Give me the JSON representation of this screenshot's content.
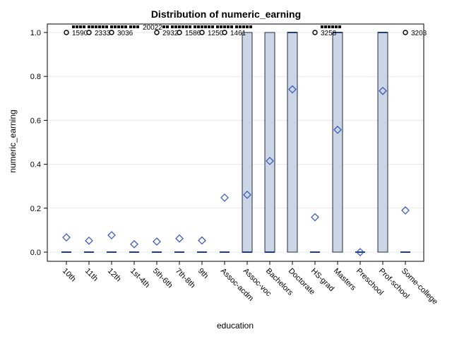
{
  "chart_data": {
    "type": "box",
    "title": "Distribution of numeric_earning",
    "xlabel": "education",
    "ylabel": "numeric_earning",
    "ylim": [
      0,
      1
    ],
    "yticks": [
      "0.0",
      "0.2",
      "0.4",
      "0.6",
      "0.8",
      "1.0"
    ],
    "ytick_values": [
      0,
      0.2,
      0.4,
      0.6,
      0.8,
      1.0
    ],
    "grid": true,
    "colors": {
      "box_fill": "#cbd5e3",
      "box_stroke": "#1f2a44",
      "mean_marker": "#2f55b5",
      "median": "#1f3c7a"
    },
    "categories": [
      "10th",
      "11th",
      "12th",
      "1st-4th",
      "5th-6th",
      "7th-8th",
      "9th",
      "Assoc-acdm",
      "Assoc-voc",
      "Bachelors",
      "Doctorate",
      "HS-grad",
      "Masters",
      "Preschool",
      "Prof-school",
      "Some-college"
    ],
    "boxes": [
      {
        "category": "10th",
        "q1": 0,
        "median": 0,
        "q3": 0,
        "mean": 0.067
      },
      {
        "category": "11th",
        "q1": 0,
        "median": 0,
        "q3": 0,
        "mean": 0.052
      },
      {
        "category": "12th",
        "q1": 0,
        "median": 0,
        "q3": 0,
        "mean": 0.077
      },
      {
        "category": "1st-4th",
        "q1": 0,
        "median": 0,
        "q3": 0,
        "mean": 0.036
      },
      {
        "category": "5th-6th",
        "q1": 0,
        "median": 0,
        "q3": 0,
        "mean": 0.048
      },
      {
        "category": "7th-8th",
        "q1": 0,
        "median": 0,
        "q3": 0,
        "mean": 0.062
      },
      {
        "category": "9th",
        "q1": 0,
        "median": 0,
        "q3": 0,
        "mean": 0.053
      },
      {
        "category": "Assoc-acdm",
        "q1": 0,
        "median": 0,
        "q3": 0,
        "mean": 0.248
      },
      {
        "category": "Assoc-voc",
        "q1": 0,
        "median": 0,
        "q3": 1,
        "mean": 0.261
      },
      {
        "category": "Bachelors",
        "q1": 0,
        "median": 0,
        "q3": 1,
        "mean": 0.415
      },
      {
        "category": "Doctorate",
        "q1": 0,
        "median": 1,
        "q3": 1,
        "mean": 0.741
      },
      {
        "category": "HS-grad",
        "q1": 0,
        "median": 0,
        "q3": 0,
        "mean": 0.159
      },
      {
        "category": "Masters",
        "q1": 0,
        "median": 1,
        "q3": 1,
        "mean": 0.557
      },
      {
        "category": "Preschool",
        "q1": 0,
        "median": 0,
        "q3": 0,
        "mean": 0.0
      },
      {
        "category": "Prof-school",
        "q1": 0,
        "median": 1,
        "q3": 1,
        "mean": 0.734
      },
      {
        "category": "Some-college",
        "q1": 0,
        "median": 0,
        "q3": 0,
        "mean": 0.19
      }
    ],
    "outliers": [
      {
        "category": "10th",
        "y": 1,
        "label": "1590",
        "label_extends_to": "11th"
      },
      {
        "category": "11th",
        "y": 1,
        "label": "2333",
        "label_extends_to": "12th"
      },
      {
        "category": "12th",
        "y": 1,
        "label": "3036",
        "label_extends_to": "1st-4th"
      },
      {
        "category": "5th-6th",
        "y": 1,
        "label": "2932",
        "label_extends_to": "7th-8th"
      },
      {
        "category": "7th-8th",
        "y": 1,
        "label": "1586",
        "label_extends_to": "9th"
      },
      {
        "category": "9th",
        "y": 1,
        "label": "1250",
        "label_extends_to": "Assoc-acdm"
      },
      {
        "category": "Assoc-acdm",
        "y": 1,
        "label": "1461",
        "label_extends_to": "Assoc-voc"
      },
      {
        "category": "HS-grad",
        "y": 1,
        "label": "3258",
        "label_extends_to": "Masters"
      },
      {
        "category": "Some-college",
        "y": 1,
        "label": "3203",
        "label_extends_to": "Some-college"
      }
    ],
    "outlier_overflow_label": "20022"
  }
}
